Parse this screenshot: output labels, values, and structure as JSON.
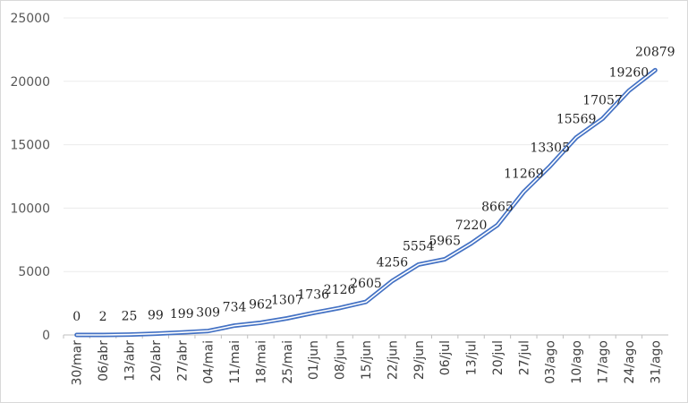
{
  "chart_data": {
    "type": "line",
    "title": "",
    "xlabel": "",
    "ylabel": "",
    "ylim": [
      0,
      25000
    ],
    "y_ticks": [
      0,
      5000,
      10000,
      15000,
      20000,
      25000
    ],
    "grid": true,
    "legend": "none",
    "line_color": "#4472c4",
    "categories": [
      "30/mar",
      "06/abr",
      "13/abr",
      "20/abr",
      "27/abr",
      "04/mai",
      "11/mai",
      "18/mai",
      "25/mai",
      "01/jun",
      "08/jun",
      "15/jun",
      "22/jun",
      "29/jun",
      "06/jul",
      "13/jul",
      "20/jul",
      "27/jul",
      "03/ago",
      "10/ago",
      "17/ago",
      "24/ago",
      "31/ago"
    ],
    "values": [
      0,
      2,
      25,
      99,
      199,
      309,
      734,
      962,
      1307,
      1736,
      2126,
      2605,
      4256,
      5554,
      5965,
      7220,
      8665,
      11269,
      13305,
      15569,
      17057,
      19260,
      20879
    ],
    "data_labels": [
      "0",
      "2",
      "25",
      "99",
      "199",
      "309",
      "734",
      "962",
      "1307",
      "1736",
      "2126",
      "2605",
      "4256",
      "5554",
      "5965",
      "7220",
      "8665",
      "11269",
      "13305",
      "15569",
      "17057",
      "19260",
      "20879"
    ]
  }
}
